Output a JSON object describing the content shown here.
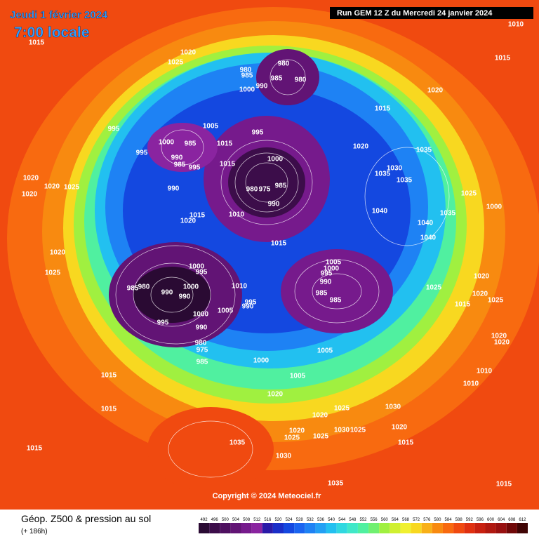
{
  "header": {
    "date": "Jeudi 1 février 2024",
    "time": "7:00 locale",
    "run": "Run GEM 12 Z du Mercredi 24 janvier 2024"
  },
  "copyright": "Copyright © 2024 Meteociel.fr",
  "legend": {
    "title": "Géop. Z500 & pression au sol",
    "lead": "(+ 186h)"
  },
  "colorbar": {
    "levels": [
      492,
      496,
      500,
      504,
      508,
      512,
      516,
      520,
      524,
      528,
      532,
      536,
      540,
      544,
      548,
      552,
      556,
      560,
      564,
      568,
      572,
      576,
      580,
      584,
      588,
      592,
      596,
      600,
      604,
      608,
      612
    ],
    "colors": [
      "#2a0a33",
      "#3c0d4a",
      "#4e1060",
      "#621475",
      "#761a8c",
      "#8a24a0",
      "#2a1aa8",
      "#1a2ec8",
      "#1448e0",
      "#1a64f0",
      "#1e82f4",
      "#22a0f4",
      "#22c0f0",
      "#30d8e0",
      "#40e8c8",
      "#50f0a0",
      "#70f070",
      "#a0f040",
      "#d0f030",
      "#f0f030",
      "#f8d820",
      "#f8b018",
      "#f88a10",
      "#f86a10",
      "#f04a10",
      "#e03010",
      "#c82010",
      "#b01810",
      "#981010",
      "#700808",
      "#400404"
    ]
  },
  "isobar_labels": [
    1015,
    1020,
    1025,
    980,
    980,
    985,
    985,
    980,
    1000,
    990,
    1020,
    1015,
    995,
    1005,
    995,
    1000,
    985,
    1015,
    995,
    1020,
    1035,
    990,
    985,
    995,
    1000,
    1015,
    1030,
    1035,
    1035,
    985,
    980,
    975,
    990,
    1020,
    1020,
    1025,
    1020,
    990,
    1025,
    1000,
    1040,
    1035,
    1015,
    1010,
    1020,
    1040,
    1040,
    1015,
    1020,
    1025,
    1005,
    1000,
    995,
    1000,
    995,
    990,
    985,
    980,
    990,
    1000,
    990,
    1010,
    1020,
    1025,
    1020,
    1025,
    985,
    985,
    995,
    990,
    1005,
    1015,
    1000,
    995,
    990,
    1020,
    980,
    975,
    1005,
    1020,
    985,
    1000,
    1015,
    1005,
    1010,
    1010,
    1020,
    1025,
    1030,
    1015,
    1020,
    1030,
    1025,
    1020,
    1020,
    1025,
    1025,
    1015,
    1015,
    1035,
    1030,
    1035,
    1015,
    1010,
    1015
  ]
}
